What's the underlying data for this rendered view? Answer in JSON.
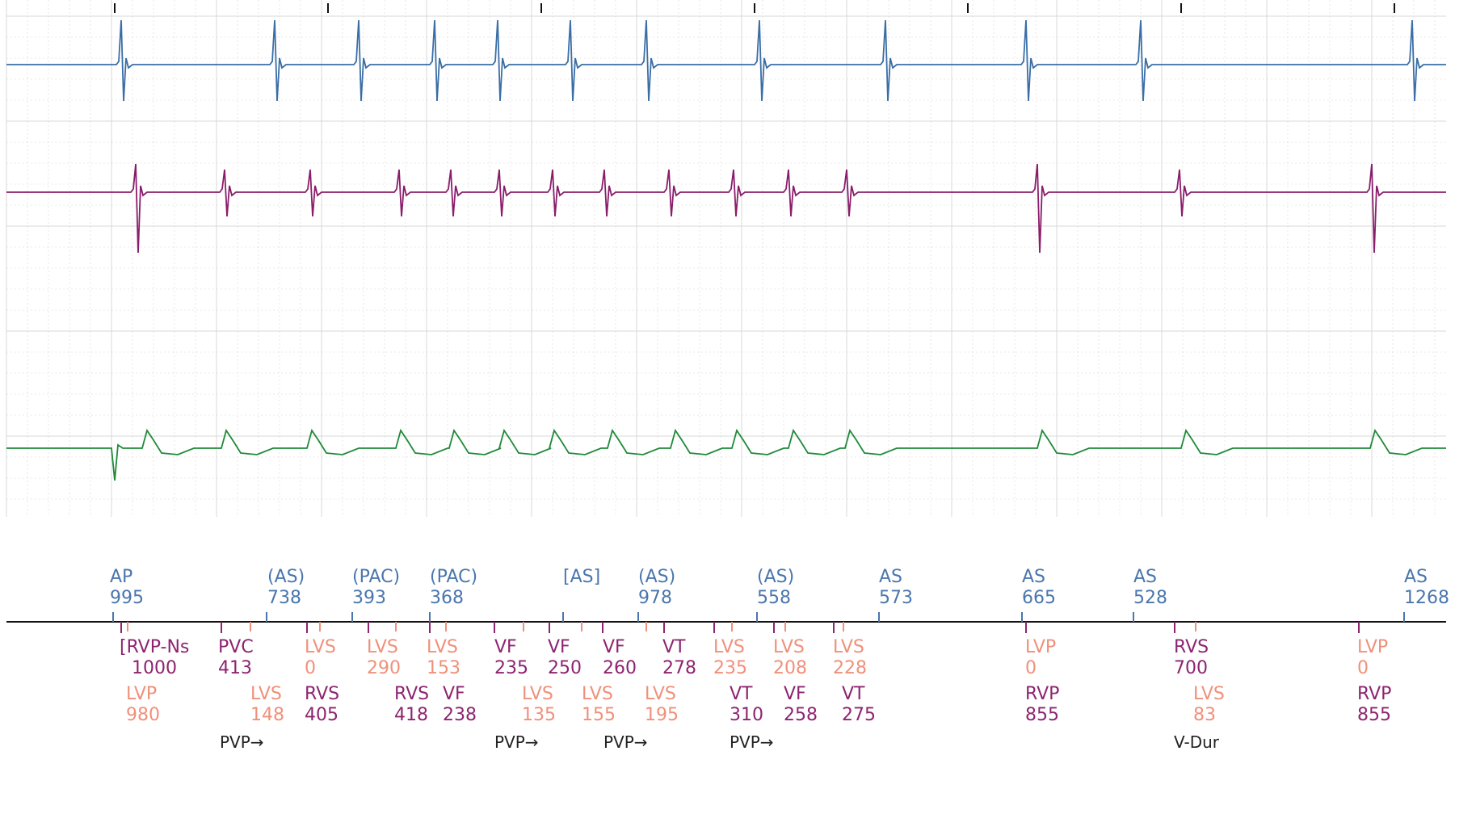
{
  "colors": {
    "atrial_channel": "#3a6ea5",
    "rv_channel": "#8a1d6b",
    "lv_channel": "#1f8a3a",
    "atrial_marker": "#4a76ad",
    "rv_marker": "#8e2470",
    "lv_marker": "#f0907a",
    "grid": "#d8d8d8",
    "timeline": "#111111",
    "note": "#222222"
  },
  "atrial_markers": [
    {
      "code": "AP",
      "value": "995"
    },
    {
      "code": "(AS)",
      "value": "738"
    },
    {
      "code": "(PAC)",
      "value": "393"
    },
    {
      "code": "(PAC)",
      "value": "368"
    },
    {
      "code": "[AS]",
      "value": ""
    },
    {
      "code": "(AS)",
      "value": "978"
    },
    {
      "code": "(AS)",
      "value": "558"
    },
    {
      "code": "AS",
      "value": "573"
    },
    {
      "code": "AS",
      "value": "665"
    },
    {
      "code": "AS",
      "value": "528"
    },
    {
      "code": "AS",
      "value": "1268"
    }
  ],
  "ventricular_markers_row1": [
    {
      "code": "[RVP-Ns",
      "value": "1000",
      "color": "rv"
    },
    {
      "code": "PVC",
      "value": "413",
      "color": "rv"
    },
    {
      "code": "LVS",
      "value": "0",
      "color": "lv"
    },
    {
      "code": "LVS",
      "value": "290",
      "color": "lv"
    },
    {
      "code": "LVS",
      "value": "153",
      "color": "lv"
    },
    {
      "code": "VF",
      "value": "235",
      "color": "rv"
    },
    {
      "code": "VF",
      "value": "250",
      "color": "rv"
    },
    {
      "code": "VF",
      "value": "260",
      "color": "rv"
    },
    {
      "code": "VT",
      "value": "278",
      "color": "rv"
    },
    {
      "code": "LVS",
      "value": "235",
      "color": "lv"
    },
    {
      "code": "LVS",
      "value": "208",
      "color": "lv"
    },
    {
      "code": "LVS",
      "value": "228",
      "color": "lv"
    },
    {
      "code": "LVP",
      "value": "0",
      "color": "lv"
    },
    {
      "code": "RVS",
      "value": "700",
      "color": "rv"
    },
    {
      "code": "LVP",
      "value": "0",
      "color": "lv"
    }
  ],
  "ventricular_markers_row2": [
    {
      "code": "LVP",
      "value": "980",
      "color": "lv"
    },
    {
      "code": "LVS",
      "value": "148",
      "color": "lv"
    },
    {
      "code": "RVS",
      "value": "405",
      "color": "rv"
    },
    {
      "code": "RVS",
      "value": "418",
      "color": "rv"
    },
    {
      "code": "VF",
      "value": "238",
      "color": "rv"
    },
    {
      "code": "LVS",
      "value": "135",
      "color": "lv"
    },
    {
      "code": "LVS",
      "value": "155",
      "color": "lv"
    },
    {
      "code": "LVS",
      "value": "195",
      "color": "lv"
    },
    {
      "code": "VT",
      "value": "310",
      "color": "rv"
    },
    {
      "code": "VF",
      "value": "258",
      "color": "rv"
    },
    {
      "code": "VT",
      "value": "275",
      "color": "rv"
    },
    {
      "code": "RVP",
      "value": "855",
      "color": "rv"
    },
    {
      "code": "LVS",
      "value": "83",
      "color": "lv"
    },
    {
      "code": "RVP",
      "value": "855",
      "color": "rv"
    }
  ],
  "notes": [
    {
      "text": "PVP→"
    },
    {
      "text": "PVP→"
    },
    {
      "text": "PVP→"
    },
    {
      "text": "PVP→"
    },
    {
      "text": "V-Dur"
    }
  ]
}
